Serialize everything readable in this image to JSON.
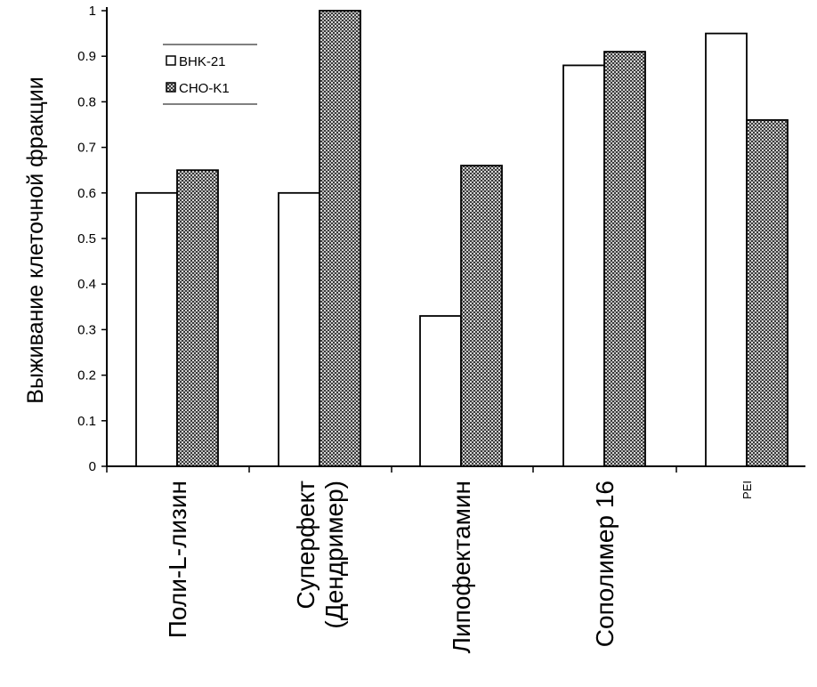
{
  "chart_data": {
    "type": "bar",
    "title": "",
    "xlabel": "",
    "ylabel": "Выживание клеточной  фракции",
    "ylim": [
      0,
      1
    ],
    "yticks": [
      "0",
      "0.1",
      "0.2",
      "0.3",
      "0.4",
      "0.5",
      "0.6",
      "0.7",
      "0.8",
      "0.9",
      "1"
    ],
    "categories": [
      [
        "Поли-L-лизин"
      ],
      [
        "Суперфект",
        "(Дендример)"
      ],
      [
        "Липофектамин"
      ],
      [
        "Сополимер 16"
      ],
      [
        "PEI"
      ]
    ],
    "series": [
      {
        "name": "BHK-21",
        "values": [
          0.6,
          0.6,
          0.33,
          0.88,
          0.95
        ],
        "fill": "#ffffff"
      },
      {
        "name": "CHO-K1",
        "values": [
          0.65,
          1.0,
          0.66,
          0.91,
          0.76
        ],
        "fill": "#6e6e6e"
      }
    ],
    "legend": "top-left",
    "grid": false
  }
}
